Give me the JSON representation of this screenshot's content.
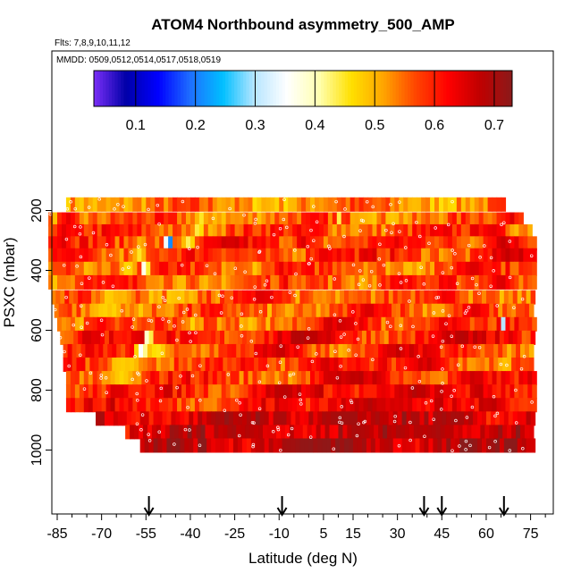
{
  "chart_data": {
    "type": "heatmap",
    "title": "ATOM4 Northbound asymmetry_500_AMP",
    "flights_text": "Flts: 7,8,9,10,11,12",
    "dates_text": "MMDD: 0509,0512,0514,0517,0518,0519",
    "xlabel": "Latitude (deg N)",
    "ylabel": "PSXC (mbar)",
    "xlim": [
      -88,
      84
    ],
    "ylim": [
      1020,
      35
    ],
    "x_ticks": [
      -85,
      -70,
      -55,
      -40,
      -25,
      -10,
      5,
      15,
      30,
      45,
      60,
      75
    ],
    "y_ticks": [
      200,
      400,
      600,
      800,
      1000
    ],
    "colorbar": {
      "range": [
        0.03,
        0.73
      ],
      "ticks": [
        0.1,
        0.2,
        0.3,
        0.4,
        0.5,
        0.6,
        0.7
      ],
      "tick_labels": [
        "0.1",
        "0.2",
        "0.3",
        "0.4",
        "0.5",
        "0.6",
        "0.7"
      ],
      "colors": [
        "#7b2ff7",
        "#0000a8",
        "#0000ff",
        "#1e6fff",
        "#00bfff",
        "#b8e6ff",
        "#ffffff",
        "#ffffb0",
        "#ffe000",
        "#ffa500",
        "#ff4500",
        "#ff0000",
        "#c00000",
        "#8b1a1a"
      ]
    },
    "arrows_latitude": [
      -54,
      -9,
      39,
      45,
      66
    ],
    "rows": [
      {
        "p": 180,
        "lat": [
          -82,
          66
        ],
        "base": 0.53,
        "blues": [],
        "reds": []
      },
      {
        "p": 230,
        "lat": [
          -88,
          72
        ],
        "base": 0.55,
        "blues": [
          {
            "lat": -37,
            "w": 3,
            "v": 0.45
          },
          {
            "lat": 10,
            "w": 1,
            "v": 0.3
          }
        ],
        "reds": [
          {
            "lat": -82,
            "w": 5,
            "v": 0.66
          },
          {
            "lat": 68,
            "w": 5,
            "v": 0.66
          }
        ]
      },
      {
        "p": 270,
        "lat": [
          -88,
          75
        ],
        "base": 0.57,
        "blues": [
          {
            "lat": -38,
            "w": 3,
            "v": 0.43
          }
        ],
        "reds": [
          {
            "lat": -84,
            "w": 5,
            "v": 0.66
          },
          {
            "lat": 2,
            "w": 6,
            "v": 0.63
          },
          {
            "lat": 60,
            "w": 8,
            "v": 0.67
          }
        ]
      },
      {
        "p": 310,
        "lat": [
          -88,
          76
        ],
        "base": 0.58,
        "blues": [
          {
            "lat": -48,
            "w": 2,
            "v": 0.1
          },
          {
            "lat": -41,
            "w": 3,
            "v": 0.4
          }
        ],
        "reds": [
          {
            "lat": -84,
            "w": 5,
            "v": 0.66
          },
          {
            "lat": -26,
            "w": 6,
            "v": 0.68
          },
          {
            "lat": -3,
            "w": 4,
            "v": 0.68
          },
          {
            "lat": 25,
            "w": 6,
            "v": 0.62
          },
          {
            "lat": 65,
            "w": 10,
            "v": 0.7
          }
        ]
      },
      {
        "p": 350,
        "lat": [
          -88,
          76
        ],
        "base": 0.58,
        "blues": [
          {
            "lat": -58,
            "w": 4,
            "v": 0.45
          }
        ],
        "reds": [
          {
            "lat": -80,
            "w": 8,
            "v": 0.64
          },
          {
            "lat": 5,
            "w": 8,
            "v": 0.66
          },
          {
            "lat": 66,
            "w": 10,
            "v": 0.69
          }
        ]
      },
      {
        "p": 395,
        "lat": [
          -88,
          76
        ],
        "base": 0.56,
        "blues": [
          {
            "lat": -56,
            "w": 2,
            "v": 0.3
          },
          {
            "lat": -62,
            "w": 4,
            "v": 0.45
          }
        ],
        "reds": [
          {
            "lat": -82,
            "w": 6,
            "v": 0.63
          },
          {
            "lat": -10,
            "w": 6,
            "v": 0.65
          },
          {
            "lat": 55,
            "w": 10,
            "v": 0.68
          }
        ]
      },
      {
        "p": 440,
        "lat": [
          -88,
          76
        ],
        "base": 0.56,
        "blues": [
          {
            "lat": -36,
            "w": 3,
            "v": 0.48
          }
        ],
        "reds": [
          {
            "lat": -75,
            "w": 6,
            "v": 0.64
          },
          {
            "lat": 30,
            "w": 10,
            "v": 0.66
          },
          {
            "lat": 65,
            "w": 8,
            "v": 0.68
          }
        ]
      },
      {
        "p": 490,
        "lat": [
          -87,
          76
        ],
        "base": 0.55,
        "blues": [
          {
            "lat": -68,
            "w": 6,
            "v": 0.47
          },
          {
            "lat": -44,
            "w": 5,
            "v": 0.48
          }
        ],
        "reds": [
          {
            "lat": -15,
            "w": 10,
            "v": 0.67
          },
          {
            "lat": 45,
            "w": 10,
            "v": 0.65
          }
        ]
      },
      {
        "p": 535,
        "lat": [
          -86,
          76
        ],
        "base": 0.55,
        "blues": [
          {
            "lat": -70,
            "w": 8,
            "v": 0.47
          }
        ],
        "reds": [
          {
            "lat": 20,
            "w": 10,
            "v": 0.67
          },
          {
            "lat": 55,
            "w": 10,
            "v": 0.68
          }
        ]
      },
      {
        "p": 580,
        "lat": [
          -85,
          76
        ],
        "base": 0.56,
        "blues": [
          {
            "lat": -40,
            "w": 4,
            "v": 0.47
          },
          {
            "lat": 65,
            "w": 1,
            "v": 0.3
          }
        ],
        "reds": [
          {
            "lat": -70,
            "w": 8,
            "v": 0.65
          },
          {
            "lat": 10,
            "w": 12,
            "v": 0.68
          },
          {
            "lat": 45,
            "w": 8,
            "v": 0.69
          }
        ]
      },
      {
        "p": 625,
        "lat": [
          -84,
          76
        ],
        "base": 0.6,
        "blues": [
          {
            "lat": -55,
            "w": 2,
            "v": 0.3
          }
        ],
        "reds": [
          {
            "lat": -75,
            "w": 6,
            "v": 0.68
          },
          {
            "lat": 0,
            "w": 14,
            "v": 0.7
          },
          {
            "lat": 50,
            "w": 10,
            "v": 0.69
          }
        ]
      },
      {
        "p": 670,
        "lat": [
          -83,
          76
        ],
        "base": 0.57,
        "blues": [
          {
            "lat": -57,
            "w": 3,
            "v": 0.3
          },
          {
            "lat": -52,
            "w": 6,
            "v": 0.45
          }
        ],
        "reds": [
          {
            "lat": -10,
            "w": 10,
            "v": 0.68
          },
          {
            "lat": 30,
            "w": 12,
            "v": 0.69
          }
        ]
      },
      {
        "p": 715,
        "lat": [
          -83,
          76
        ],
        "base": 0.57,
        "blues": [
          {
            "lat": -63,
            "w": 8,
            "v": 0.47
          },
          {
            "lat": 65,
            "w": 4,
            "v": 0.48
          }
        ],
        "reds": [
          {
            "lat": 5,
            "w": 12,
            "v": 0.7
          },
          {
            "lat": 40,
            "w": 10,
            "v": 0.7
          }
        ]
      },
      {
        "p": 760,
        "lat": [
          -82,
          76
        ],
        "base": 0.58,
        "blues": [
          {
            "lat": -64,
            "w": 10,
            "v": 0.47
          }
        ],
        "reds": [
          {
            "lat": 15,
            "w": 16,
            "v": 0.7
          },
          {
            "lat": 55,
            "w": 10,
            "v": 0.68
          }
        ]
      },
      {
        "p": 805,
        "lat": [
          -82,
          76
        ],
        "base": 0.6,
        "blues": [],
        "reds": [
          {
            "lat": -10,
            "w": 14,
            "v": 0.7
          },
          {
            "lat": 35,
            "w": 16,
            "v": 0.71
          }
        ]
      },
      {
        "p": 850,
        "lat": [
          -82,
          76
        ],
        "base": 0.6,
        "blues": [],
        "reds": [
          {
            "lat": 20,
            "w": 20,
            "v": 0.72
          },
          {
            "lat": 62,
            "w": 8,
            "v": 0.71
          }
        ]
      },
      {
        "p": 895,
        "lat": [
          -72,
          76
        ],
        "base": 0.65,
        "blues": [],
        "reds": [
          {
            "lat": 10,
            "w": 20,
            "v": 0.72
          },
          {
            "lat": 50,
            "w": 10,
            "v": 0.71
          }
        ]
      },
      {
        "p": 940,
        "lat": [
          -62,
          76
        ],
        "base": 0.66,
        "blues": [],
        "reds": [
          {
            "lat": -20,
            "w": 12,
            "v": 0.7
          },
          {
            "lat": 40,
            "w": 16,
            "v": 0.71
          }
        ]
      },
      {
        "p": 985,
        "lat": [
          -57,
          76
        ],
        "base": 0.68,
        "blues": [],
        "reds": [
          {
            "lat": 0,
            "w": 20,
            "v": 0.72
          }
        ]
      }
    ]
  }
}
